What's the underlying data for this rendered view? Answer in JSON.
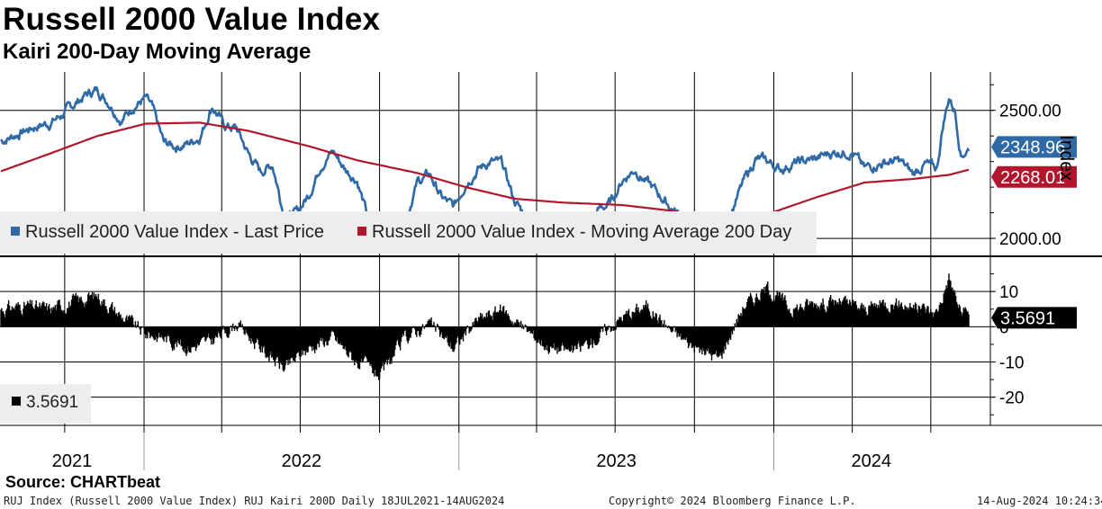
{
  "header": {
    "title": "Russell 2000 Value Index",
    "subtitle": "Kairi 200-Day Moving Average"
  },
  "legend": {
    "last_price": "Russell 2000 Value Index - Last Price",
    "moving_average": "Russell 2000 Value Index - Moving Average 200 Day",
    "kairi_value": "3.5691"
  },
  "source": "Source: CHARTbeat",
  "footer": {
    "left": "RUJ Index (Russell 2000 Value Index) RUJ Kairi 200D  Daily 18JUL2021-14AUG2024",
    "center": "Copyright© 2024 Bloomberg Finance L.P.",
    "right": "14-Aug-2024 10:24:34"
  },
  "colors": {
    "price": "#2f6aa6",
    "moving_average": "#b0172d",
    "kairi": "#000000",
    "price_tag": "#2f6aa6",
    "ma_tag": "#b0172d",
    "kairi_tag": "#000000"
  },
  "chart_data": [
    {
      "type": "line",
      "title": "Russell 2000 Value Index",
      "ylabel": "Index",
      "ylim": [
        1930,
        2650
      ],
      "yticks": [
        "2500.00",
        "2000.00"
      ],
      "ytick_values": [
        2500,
        2000
      ],
      "xlim": [
        "2021-07-18",
        "2024-08-14"
      ],
      "year_labels": [
        "2021",
        "2022",
        "2023",
        "2024"
      ],
      "grid": true,
      "legend_position": "bottom-left",
      "last_labels": {
        "price": "2348.96",
        "moving_average": "2268.01"
      },
      "series": [
        {
          "name": "Russell 2000 Value Index - Last Price",
          "x": [
            "2021-07-19",
            "2021-08-02",
            "2021-08-16",
            "2021-08-30",
            "2021-09-13",
            "2021-09-27",
            "2021-10-11",
            "2021-10-25",
            "2021-11-08",
            "2021-11-22",
            "2021-12-06",
            "2021-12-20",
            "2022-01-03",
            "2022-01-10",
            "2022-01-24",
            "2022-02-07",
            "2022-02-21",
            "2022-03-07",
            "2022-03-21",
            "2022-04-04",
            "2022-04-18",
            "2022-05-02",
            "2022-05-16",
            "2022-05-30",
            "2022-06-13",
            "2022-06-27",
            "2022-07-11",
            "2022-07-25",
            "2022-08-08",
            "2022-08-22",
            "2022-09-05",
            "2022-09-19",
            "2022-10-03",
            "2022-10-17",
            "2022-10-31",
            "2022-11-14",
            "2022-11-28",
            "2022-12-12",
            "2022-12-26",
            "2023-01-09",
            "2023-01-23",
            "2023-02-06",
            "2023-02-20",
            "2023-03-06",
            "2023-03-20",
            "2023-04-03",
            "2023-04-17",
            "2023-05-01",
            "2023-05-15",
            "2023-05-29",
            "2023-06-12",
            "2023-06-26",
            "2023-07-10",
            "2023-07-24",
            "2023-08-07",
            "2023-08-21",
            "2023-09-04",
            "2023-09-18",
            "2023-10-02",
            "2023-10-16",
            "2023-10-30",
            "2023-11-13",
            "2023-11-27",
            "2023-12-11",
            "2023-12-25",
            "2024-01-08",
            "2024-01-22",
            "2024-02-05",
            "2024-02-19",
            "2024-03-04",
            "2024-03-18",
            "2024-04-01",
            "2024-04-15",
            "2024-04-29",
            "2024-05-13",
            "2024-05-27",
            "2024-06-10",
            "2024-06-24",
            "2024-07-08",
            "2024-07-15",
            "2024-07-22",
            "2024-07-29",
            "2024-08-05",
            "2024-08-14"
          ],
          "values": [
            2380,
            2400,
            2420,
            2440,
            2450,
            2480,
            2520,
            2560,
            2580,
            2530,
            2460,
            2520,
            2545,
            2510,
            2370,
            2360,
            2370,
            2400,
            2520,
            2440,
            2430,
            2330,
            2260,
            2290,
            2085,
            2100,
            2170,
            2290,
            2340,
            2270,
            2230,
            2060,
            2010,
            2060,
            2080,
            2220,
            2250,
            2160,
            2120,
            2220,
            2270,
            2300,
            2290,
            2150,
            2080,
            2070,
            2040,
            2050,
            2030,
            2050,
            2110,
            2140,
            2230,
            2270,
            2220,
            2170,
            2120,
            2080,
            2050,
            2000,
            2020,
            2110,
            2220,
            2310,
            2300,
            2270,
            2290,
            2300,
            2310,
            2330,
            2340,
            2340,
            2270,
            2290,
            2300,
            2300,
            2250,
            2290,
            2270,
            2440,
            2550,
            2500,
            2330,
            2350
          ]
        },
        {
          "name": "Russell 2000 Value Index - Moving Average 200 Day",
          "x": [
            "2021-07-19",
            "2021-09-13",
            "2021-11-08",
            "2022-01-03",
            "2022-03-07",
            "2022-05-02",
            "2022-07-11",
            "2022-09-05",
            "2022-11-14",
            "2023-01-09",
            "2023-03-06",
            "2023-05-01",
            "2023-07-10",
            "2023-09-04",
            "2023-10-30",
            "2023-12-25",
            "2024-02-19",
            "2024-04-15",
            "2024-06-10",
            "2024-07-22",
            "2024-08-14"
          ],
          "values": [
            2262,
            2330,
            2400,
            2448,
            2452,
            2420,
            2360,
            2305,
            2255,
            2200,
            2155,
            2140,
            2130,
            2108,
            2070,
            2095,
            2160,
            2218,
            2232,
            2248,
            2268
          ]
        }
      ]
    },
    {
      "type": "bar",
      "title": "Russell 2000 Value Index Kairi 200-Day Moving Average",
      "ylim": [
        -28,
        20
      ],
      "yticks": [
        "10",
        "0",
        "-10",
        "-20"
      ],
      "ytick_values": [
        10,
        0,
        -10,
        -20
      ],
      "last_value": "3.5691",
      "series": [
        {
          "name": "3.5691",
          "x": [
            "2021-07-19",
            "2021-08-16",
            "2021-09-13",
            "2021-10-11",
            "2021-11-08",
            "2021-12-06",
            "2022-01-03",
            "2022-01-24",
            "2022-02-21",
            "2022-03-21",
            "2022-04-18",
            "2022-05-16",
            "2022-06-13",
            "2022-07-11",
            "2022-08-08",
            "2022-09-05",
            "2022-10-03",
            "2022-10-31",
            "2022-11-28",
            "2022-12-26",
            "2023-01-23",
            "2023-02-20",
            "2023-03-20",
            "2023-04-17",
            "2023-05-15",
            "2023-06-12",
            "2023-07-10",
            "2023-08-07",
            "2023-09-04",
            "2023-10-02",
            "2023-10-30",
            "2023-11-27",
            "2023-12-25",
            "2024-01-22",
            "2024-02-19",
            "2024-03-18",
            "2024-04-15",
            "2024-05-13",
            "2024-06-10",
            "2024-07-08",
            "2024-07-22",
            "2024-08-05",
            "2024-08-14"
          ],
          "values": [
            5,
            6,
            5,
            7,
            9,
            3,
            -2,
            -3,
            -6,
            -4,
            1,
            -6,
            -12,
            -6,
            -3,
            -10,
            -14,
            -3,
            1,
            -6,
            2,
            5,
            -1,
            -6,
            -7,
            -3,
            3,
            6,
            -1,
            -6,
            -9,
            6,
            11,
            5,
            7,
            7,
            5,
            7,
            6,
            4,
            14,
            4,
            3.5691
          ]
        }
      ]
    }
  ]
}
